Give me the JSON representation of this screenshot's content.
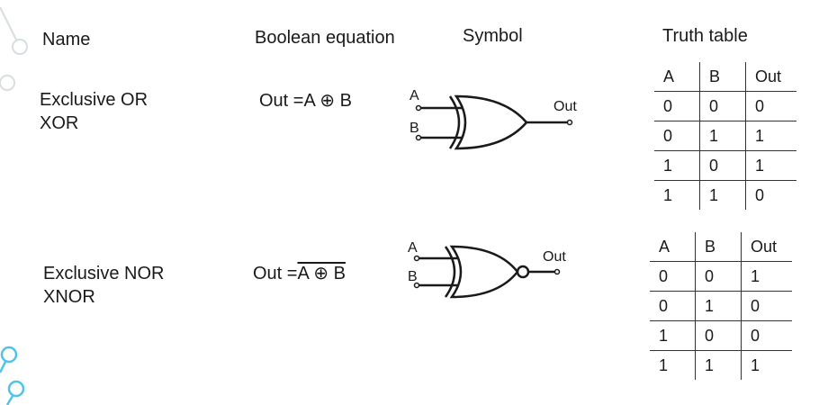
{
  "headers": {
    "name": "Name",
    "equation": "Boolean equation",
    "symbol": "Symbol",
    "truth_table": "Truth table"
  },
  "xor": {
    "name_line1": "Exclusive OR",
    "name_line2": "XOR",
    "eq_prefix": "Out =",
    "eq_expr": "A ⊕ B",
    "symbol_labels": {
      "a": "A",
      "b": "B",
      "out": "Out"
    },
    "table": {
      "columns": [
        "A",
        "B",
        "Out"
      ],
      "rows": [
        [
          "0",
          "0",
          "0"
        ],
        [
          "0",
          "1",
          "1"
        ],
        [
          "1",
          "0",
          "1"
        ],
        [
          "1",
          "1",
          "0"
        ]
      ]
    }
  },
  "xnor": {
    "name_line1": "Exclusive NOR",
    "name_line2": "XNOR",
    "eq_prefix": "Out =",
    "eq_expr": "A ⊕ B",
    "symbol_labels": {
      "a": "A",
      "b": "B",
      "out": "Out"
    },
    "table": {
      "columns": [
        "A",
        "B",
        "Out"
      ],
      "rows": [
        [
          "0",
          "0",
          "1"
        ],
        [
          "0",
          "1",
          "0"
        ],
        [
          "1",
          "0",
          "0"
        ],
        [
          "1",
          "1",
          "1"
        ]
      ]
    }
  },
  "colors": {
    "line": "#1a1a1a",
    "grid": "#333333",
    "decor": "#4fc3e8"
  }
}
